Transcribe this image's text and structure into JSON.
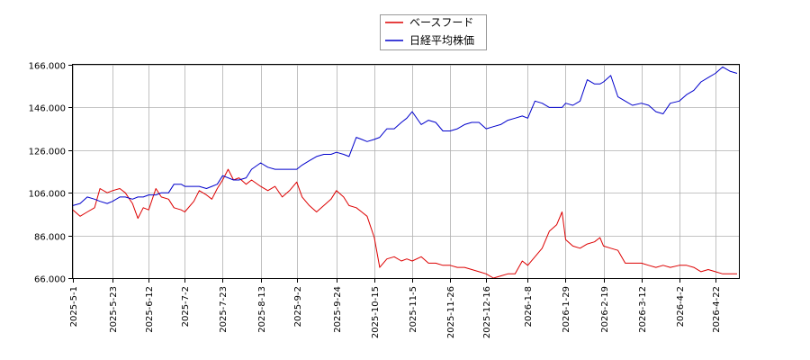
{
  "chart_data": {
    "type": "line",
    "title": "",
    "xlabel": "",
    "ylabel": "",
    "ylim": [
      66,
      166
    ],
    "xlim": [
      "2025-05-01",
      "2026-05-05"
    ],
    "grid": true,
    "legend_position": "top-center",
    "y_ticks": [
      "66.000",
      "86.000",
      "106.000",
      "126.000",
      "146.000",
      "166.000"
    ],
    "x_ticks": [
      "2025-5-1",
      "2025-5-23",
      "2025-6-12",
      "2025-7-2",
      "2025-7-23",
      "2025-8-13",
      "2025-9-2",
      "2025-9-24",
      "2025-10-15",
      "2025-11-5",
      "2025-11-26",
      "2025-12-16",
      "2026-1-8",
      "2026-1-29",
      "2026-2-19",
      "2026-3-12",
      "2026-4-2",
      "2026-4-22"
    ],
    "x_tick_dates": [
      "2025-05-01",
      "2025-05-23",
      "2025-06-12",
      "2025-07-02",
      "2025-07-23",
      "2025-08-13",
      "2025-09-02",
      "2025-09-24",
      "2025-10-15",
      "2025-11-05",
      "2025-11-26",
      "2025-12-16",
      "2026-01-08",
      "2026-01-29",
      "2026-02-19",
      "2026-03-12",
      "2026-04-02",
      "2026-04-22"
    ],
    "series": [
      {
        "name": "ベースフード",
        "color": "#dd0000",
        "points": [
          [
            "2025-05-01",
            98
          ],
          [
            "2025-05-05",
            95
          ],
          [
            "2025-05-09",
            97
          ],
          [
            "2025-05-13",
            99
          ],
          [
            "2025-05-16",
            108
          ],
          [
            "2025-05-20",
            106
          ],
          [
            "2025-05-23",
            107
          ],
          [
            "2025-05-27",
            108
          ],
          [
            "2025-05-30",
            106
          ],
          [
            "2025-06-03",
            101
          ],
          [
            "2025-06-06",
            94
          ],
          [
            "2025-06-09",
            99
          ],
          [
            "2025-06-12",
            98
          ],
          [
            "2025-06-16",
            108
          ],
          [
            "2025-06-19",
            104
          ],
          [
            "2025-06-23",
            103
          ],
          [
            "2025-06-26",
            99
          ],
          [
            "2025-06-30",
            98
          ],
          [
            "2025-07-02",
            97
          ],
          [
            "2025-07-07",
            102
          ],
          [
            "2025-07-10",
            107
          ],
          [
            "2025-07-14",
            105
          ],
          [
            "2025-07-17",
            103
          ],
          [
            "2025-07-20",
            108
          ],
          [
            "2025-07-23",
            112
          ],
          [
            "2025-07-26",
            117
          ],
          [
            "2025-07-29",
            112
          ],
          [
            "2025-08-01",
            113
          ],
          [
            "2025-08-05",
            110
          ],
          [
            "2025-08-08",
            112
          ],
          [
            "2025-08-13",
            109
          ],
          [
            "2025-08-17",
            107
          ],
          [
            "2025-08-21",
            109
          ],
          [
            "2025-08-25",
            104
          ],
          [
            "2025-08-29",
            107
          ],
          [
            "2025-09-02",
            111
          ],
          [
            "2025-09-05",
            104
          ],
          [
            "2025-09-09",
            100
          ],
          [
            "2025-09-13",
            97
          ],
          [
            "2025-09-17",
            100
          ],
          [
            "2025-09-21",
            103
          ],
          [
            "2025-09-24",
            107
          ],
          [
            "2025-09-28",
            104
          ],
          [
            "2025-10-01",
            100
          ],
          [
            "2025-10-05",
            99
          ],
          [
            "2025-10-08",
            97
          ],
          [
            "2025-10-11",
            95
          ],
          [
            "2025-10-15",
            85
          ],
          [
            "2025-10-18",
            71
          ],
          [
            "2025-10-22",
            75
          ],
          [
            "2025-10-26",
            76
          ],
          [
            "2025-10-30",
            74
          ],
          [
            "2025-11-02",
            75
          ],
          [
            "2025-11-05",
            74
          ],
          [
            "2025-11-10",
            76
          ],
          [
            "2025-11-14",
            73
          ],
          [
            "2025-11-18",
            73
          ],
          [
            "2025-11-22",
            72
          ],
          [
            "2025-11-26",
            72
          ],
          [
            "2025-11-30",
            71
          ],
          [
            "2025-12-04",
            71
          ],
          [
            "2025-12-08",
            70
          ],
          [
            "2025-12-12",
            69
          ],
          [
            "2025-12-16",
            68
          ],
          [
            "2025-12-20",
            66
          ],
          [
            "2025-12-24",
            67
          ],
          [
            "2025-12-28",
            68
          ],
          [
            "2026-01-01",
            68
          ],
          [
            "2026-01-05",
            74
          ],
          [
            "2026-01-08",
            72
          ],
          [
            "2026-01-12",
            76
          ],
          [
            "2026-01-16",
            80
          ],
          [
            "2026-01-20",
            88
          ],
          [
            "2026-01-24",
            91
          ],
          [
            "2026-01-27",
            97
          ],
          [
            "2026-01-29",
            84
          ],
          [
            "2026-02-02",
            81
          ],
          [
            "2026-02-06",
            80
          ],
          [
            "2026-02-10",
            82
          ],
          [
            "2026-02-14",
            83
          ],
          [
            "2026-02-17",
            85
          ],
          [
            "2026-02-19",
            81
          ],
          [
            "2026-02-23",
            80
          ],
          [
            "2026-02-27",
            79
          ],
          [
            "2026-03-03",
            73
          ],
          [
            "2026-03-07",
            73
          ],
          [
            "2026-03-12",
            73
          ],
          [
            "2026-03-16",
            72
          ],
          [
            "2026-03-20",
            71
          ],
          [
            "2026-03-24",
            72
          ],
          [
            "2026-03-28",
            71
          ],
          [
            "2026-04-02",
            72
          ],
          [
            "2026-04-06",
            72
          ],
          [
            "2026-04-10",
            71
          ],
          [
            "2026-04-14",
            69
          ],
          [
            "2026-04-18",
            70
          ],
          [
            "2026-04-22",
            69
          ],
          [
            "2026-04-26",
            68
          ],
          [
            "2026-04-30",
            68
          ],
          [
            "2026-05-04",
            68
          ]
        ]
      },
      {
        "name": "日経平均株価",
        "color": "#0000cc",
        "points": [
          [
            "2025-05-01",
            100
          ],
          [
            "2025-05-05",
            101
          ],
          [
            "2025-05-09",
            104
          ],
          [
            "2025-05-13",
            103
          ],
          [
            "2025-05-16",
            102
          ],
          [
            "2025-05-20",
            101
          ],
          [
            "2025-05-23",
            102
          ],
          [
            "2025-05-27",
            104
          ],
          [
            "2025-05-30",
            104
          ],
          [
            "2025-06-03",
            103
          ],
          [
            "2025-06-06",
            104
          ],
          [
            "2025-06-09",
            104
          ],
          [
            "2025-06-12",
            105
          ],
          [
            "2025-06-16",
            105
          ],
          [
            "2025-06-19",
            106
          ],
          [
            "2025-06-23",
            106
          ],
          [
            "2025-06-26",
            110
          ],
          [
            "2025-06-30",
            110
          ],
          [
            "2025-07-02",
            109
          ],
          [
            "2025-07-07",
            109
          ],
          [
            "2025-07-10",
            109
          ],
          [
            "2025-07-14",
            108
          ],
          [
            "2025-07-17",
            109
          ],
          [
            "2025-07-20",
            110
          ],
          [
            "2025-07-23",
            114
          ],
          [
            "2025-07-26",
            113
          ],
          [
            "2025-07-29",
            112
          ],
          [
            "2025-08-01",
            112
          ],
          [
            "2025-08-05",
            113
          ],
          [
            "2025-08-08",
            117
          ],
          [
            "2025-08-13",
            120
          ],
          [
            "2025-08-17",
            118
          ],
          [
            "2025-08-21",
            117
          ],
          [
            "2025-08-25",
            117
          ],
          [
            "2025-08-29",
            117
          ],
          [
            "2025-09-02",
            117
          ],
          [
            "2025-09-05",
            119
          ],
          [
            "2025-09-09",
            121
          ],
          [
            "2025-09-13",
            123
          ],
          [
            "2025-09-17",
            124
          ],
          [
            "2025-09-21",
            124
          ],
          [
            "2025-09-24",
            125
          ],
          [
            "2025-09-28",
            124
          ],
          [
            "2025-10-01",
            123
          ],
          [
            "2025-10-05",
            132
          ],
          [
            "2025-10-08",
            131
          ],
          [
            "2025-10-11",
            130
          ],
          [
            "2025-10-15",
            131
          ],
          [
            "2025-10-18",
            132
          ],
          [
            "2025-10-22",
            136
          ],
          [
            "2025-10-26",
            136
          ],
          [
            "2025-10-30",
            139
          ],
          [
            "2025-11-02",
            141
          ],
          [
            "2025-11-05",
            144
          ],
          [
            "2025-11-10",
            138
          ],
          [
            "2025-11-14",
            140
          ],
          [
            "2025-11-18",
            139
          ],
          [
            "2025-11-22",
            135
          ],
          [
            "2025-11-26",
            135
          ],
          [
            "2025-11-30",
            136
          ],
          [
            "2025-12-04",
            138
          ],
          [
            "2025-12-08",
            139
          ],
          [
            "2025-12-12",
            139
          ],
          [
            "2025-12-16",
            136
          ],
          [
            "2025-12-20",
            137
          ],
          [
            "2025-12-24",
            138
          ],
          [
            "2025-12-28",
            140
          ],
          [
            "2026-01-01",
            141
          ],
          [
            "2026-01-05",
            142
          ],
          [
            "2026-01-08",
            141
          ],
          [
            "2026-01-12",
            149
          ],
          [
            "2026-01-16",
            148
          ],
          [
            "2026-01-20",
            146
          ],
          [
            "2026-01-24",
            146
          ],
          [
            "2026-01-27",
            146
          ],
          [
            "2026-01-29",
            148
          ],
          [
            "2026-02-02",
            147
          ],
          [
            "2026-02-06",
            149
          ],
          [
            "2026-02-10",
            159
          ],
          [
            "2026-02-14",
            157
          ],
          [
            "2026-02-17",
            157
          ],
          [
            "2026-02-19",
            158
          ],
          [
            "2026-02-23",
            161
          ],
          [
            "2026-02-27",
            151
          ],
          [
            "2026-03-03",
            149
          ],
          [
            "2026-03-07",
            147
          ],
          [
            "2026-03-12",
            148
          ],
          [
            "2026-03-16",
            147
          ],
          [
            "2026-03-20",
            144
          ],
          [
            "2026-03-24",
            143
          ],
          [
            "2026-03-28",
            148
          ],
          [
            "2026-04-02",
            149
          ],
          [
            "2026-04-06",
            152
          ],
          [
            "2026-04-10",
            154
          ],
          [
            "2026-04-14",
            158
          ],
          [
            "2026-04-18",
            160
          ],
          [
            "2026-04-22",
            162
          ],
          [
            "2026-04-26",
            165
          ],
          [
            "2026-04-30",
            163
          ],
          [
            "2026-05-04",
            162
          ]
        ]
      }
    ]
  }
}
